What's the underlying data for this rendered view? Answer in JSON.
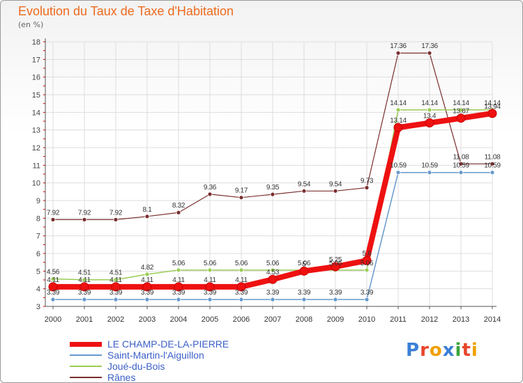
{
  "title": "Evolution du Taux de Taxe d'Habitation",
  "subtitle": "(en %)",
  "logo": "Proxiti",
  "colors": {
    "title": "#ee6a1e",
    "legend_text": "#3b5fc7",
    "grid": "#dddddd",
    "axis_tick_red": "#cc0000"
  },
  "chart_data": {
    "type": "line",
    "ylim": [
      3,
      18
    ],
    "yticks": [
      3,
      4,
      5,
      6,
      7,
      8,
      9,
      10,
      11,
      12,
      13,
      14,
      15,
      16,
      17,
      18
    ],
    "x": [
      "2000",
      "2001",
      "2002",
      "2003",
      "2004",
      "2005",
      "2006",
      "2007",
      "2008",
      "2009",
      "2010",
      "2011",
      "2012",
      "2013",
      "2014"
    ],
    "grid": true,
    "legend_position": "bottom-left",
    "series": [
      {
        "name": "LE CHAMP-DE-LA-PIERRE",
        "color": "#ee1111",
        "width": 8,
        "marker": 6,
        "values": [
          4.11,
          4.11,
          4.11,
          4.11,
          4.11,
          4.11,
          4.11,
          4.53,
          5.0,
          5.25,
          5.6,
          13.14,
          13.4,
          13.67,
          13.94
        ],
        "labels": [
          "4.11",
          "4.11",
          "4.11",
          "4.11",
          "4.11",
          "4.11",
          "4.11",
          "4.53",
          "5",
          "5.25",
          "5.6",
          "13.14",
          "13.4",
          "13.67",
          "13.94"
        ]
      },
      {
        "name": "Saint-Martin-l'Aiguillon",
        "color": "#6699cc",
        "width": 1.5,
        "marker": 3,
        "values": [
          3.39,
          3.39,
          3.39,
          3.39,
          3.39,
          3.39,
          3.39,
          3.39,
          3.39,
          3.39,
          3.39,
          10.59,
          10.59,
          10.59,
          10.59
        ],
        "labels": [
          "3.39",
          "3.39",
          "3.39",
          "3.39",
          "3.39",
          "3.39",
          "3.39",
          "3.39",
          "3.39",
          "3.39",
          "3.39",
          "10.59",
          "10.59",
          "10.59",
          "10.59"
        ]
      },
      {
        "name": "Joué-du-Bois",
        "color": "#99cc55",
        "width": 1.5,
        "marker": 3,
        "values": [
          4.56,
          4.51,
          4.51,
          4.82,
          5.06,
          5.06,
          5.06,
          5.06,
          5.06,
          5.06,
          5.06,
          14.14,
          14.14,
          14.14,
          14.14
        ],
        "labels": [
          "4.56",
          "4.51",
          "4.51",
          "4.82",
          "5.06",
          "5.06",
          "5.06",
          "5.06",
          "5.06",
          "5.06",
          "5.06",
          "14.14",
          "14.14",
          "14.14",
          "14.14"
        ]
      },
      {
        "name": "Rânes",
        "color": "#7a2e2e",
        "width": 1.2,
        "marker": 3,
        "values": [
          7.92,
          7.92,
          7.92,
          8.1,
          8.32,
          9.36,
          9.17,
          9.35,
          9.54,
          9.54,
          9.73,
          17.36,
          17.36,
          11.08,
          11.08
        ],
        "labels": [
          "7.92",
          "7.92",
          "7.92",
          "8.1",
          "8.32",
          "9.36",
          "9.17",
          "9.35",
          "9.54",
          "9.54",
          "9.73",
          "17.36",
          "17.36",
          "11.08",
          "11.08"
        ]
      }
    ]
  }
}
